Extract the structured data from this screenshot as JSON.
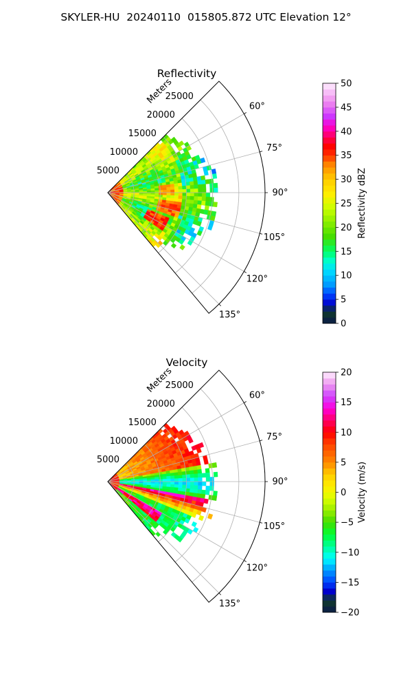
{
  "figure_title": "SKYLER-HU  20240110  015805.872 UTC Elevation 12°",
  "chart_data": [
    {
      "type": "heatmap",
      "projection": "polar-sector",
      "title": "Reflectivity",
      "r_label": "Meters",
      "r_ticks": [
        5000,
        10000,
        15000,
        20000,
        25000
      ],
      "r_tick_labels": [
        "5000",
        "10000",
        "15000",
        "20000",
        "25000"
      ],
      "rlim": [
        0,
        30000
      ],
      "theta_ticks": [
        60,
        75,
        90,
        105,
        120,
        135
      ],
      "theta_tick_labels": [
        "60°",
        "75°",
        "90°",
        "105°",
        "120°",
        "135°"
      ],
      "theta_range": [
        45,
        140
      ],
      "data_extent_m": 21000,
      "grid": true,
      "colorbar": {
        "label": "Reflectivity dBZ",
        "vmin": 0,
        "vmax": 50,
        "ticks": [
          0,
          5,
          10,
          15,
          20,
          25,
          30,
          35,
          40,
          45,
          50
        ],
        "tick_labels": [
          "0",
          "5",
          "10",
          "15",
          "20",
          "25",
          "30",
          "35",
          "40",
          "45",
          "50"
        ],
        "stops": [
          {
            "v": 0,
            "c": "#0a1a4a"
          },
          {
            "v": 2.5,
            "c": "#103b2a"
          },
          {
            "v": 4,
            "c": "#0000cc"
          },
          {
            "v": 6,
            "c": "#0044ff"
          },
          {
            "v": 8,
            "c": "#0099ff"
          },
          {
            "v": 11,
            "c": "#00ddff"
          },
          {
            "v": 13,
            "c": "#00ffcc"
          },
          {
            "v": 15,
            "c": "#00ff66"
          },
          {
            "v": 18,
            "c": "#44dd00"
          },
          {
            "v": 21,
            "c": "#88ee00"
          },
          {
            "v": 24,
            "c": "#ccff00"
          },
          {
            "v": 27,
            "c": "#ffee00"
          },
          {
            "v": 30,
            "c": "#ffcc00"
          },
          {
            "v": 33,
            "c": "#ff8800"
          },
          {
            "v": 35,
            "c": "#ff3300"
          },
          {
            "v": 37,
            "c": "#ff0000"
          },
          {
            "v": 39,
            "c": "#ff0066"
          },
          {
            "v": 41,
            "c": "#ff00cc"
          },
          {
            "v": 43,
            "c": "#cc33ff"
          },
          {
            "v": 46,
            "c": "#ee88ee"
          },
          {
            "v": 50,
            "c": "#ffeeff"
          }
        ]
      }
    },
    {
      "type": "heatmap",
      "projection": "polar-sector",
      "title": "Velocity",
      "r_label": "Meters",
      "r_ticks": [
        5000,
        10000,
        15000,
        20000,
        25000
      ],
      "r_tick_labels": [
        "5000",
        "10000",
        "15000",
        "20000",
        "25000"
      ],
      "rlim": [
        0,
        30000
      ],
      "theta_ticks": [
        60,
        75,
        90,
        105,
        120,
        135
      ],
      "theta_tick_labels": [
        "60°",
        "75°",
        "90°",
        "105°",
        "120°",
        "135°"
      ],
      "theta_range": [
        45,
        140
      ],
      "data_extent_m": 21000,
      "grid": true,
      "colorbar": {
        "label": "Velocity (m/s)",
        "vmin": -20,
        "vmax": 20,
        "ticks": [
          -20,
          -15,
          -10,
          -5,
          0,
          5,
          10,
          15,
          20
        ],
        "tick_labels": [
          "−20",
          "−15",
          "−10",
          "−5",
          "0",
          "5",
          "10",
          "15",
          "20"
        ],
        "stops": [
          {
            "v": -20,
            "c": "#0a1a4a"
          },
          {
            "v": -18,
            "c": "#103b2a"
          },
          {
            "v": -16.5,
            "c": "#0000cc"
          },
          {
            "v": -15,
            "c": "#0044ff"
          },
          {
            "v": -13,
            "c": "#0099ff"
          },
          {
            "v": -11,
            "c": "#00ffff"
          },
          {
            "v": -9,
            "c": "#00ff99"
          },
          {
            "v": -7,
            "c": "#00ff33"
          },
          {
            "v": -5,
            "c": "#44dd00"
          },
          {
            "v": -3,
            "c": "#99ee00"
          },
          {
            "v": -1,
            "c": "#ddff00"
          },
          {
            "v": 1,
            "c": "#ffee00"
          },
          {
            "v": 3,
            "c": "#ffcc00"
          },
          {
            "v": 5,
            "c": "#ff8800"
          },
          {
            "v": 8,
            "c": "#ff4400"
          },
          {
            "v": 10,
            "c": "#ff0000"
          },
          {
            "v": 12,
            "c": "#ff0066"
          },
          {
            "v": 14,
            "c": "#ff00dd"
          },
          {
            "v": 16,
            "c": "#cc44ff"
          },
          {
            "v": 18,
            "c": "#ee99ee"
          },
          {
            "v": 20,
            "c": "#ffeeff"
          }
        ]
      }
    }
  ]
}
